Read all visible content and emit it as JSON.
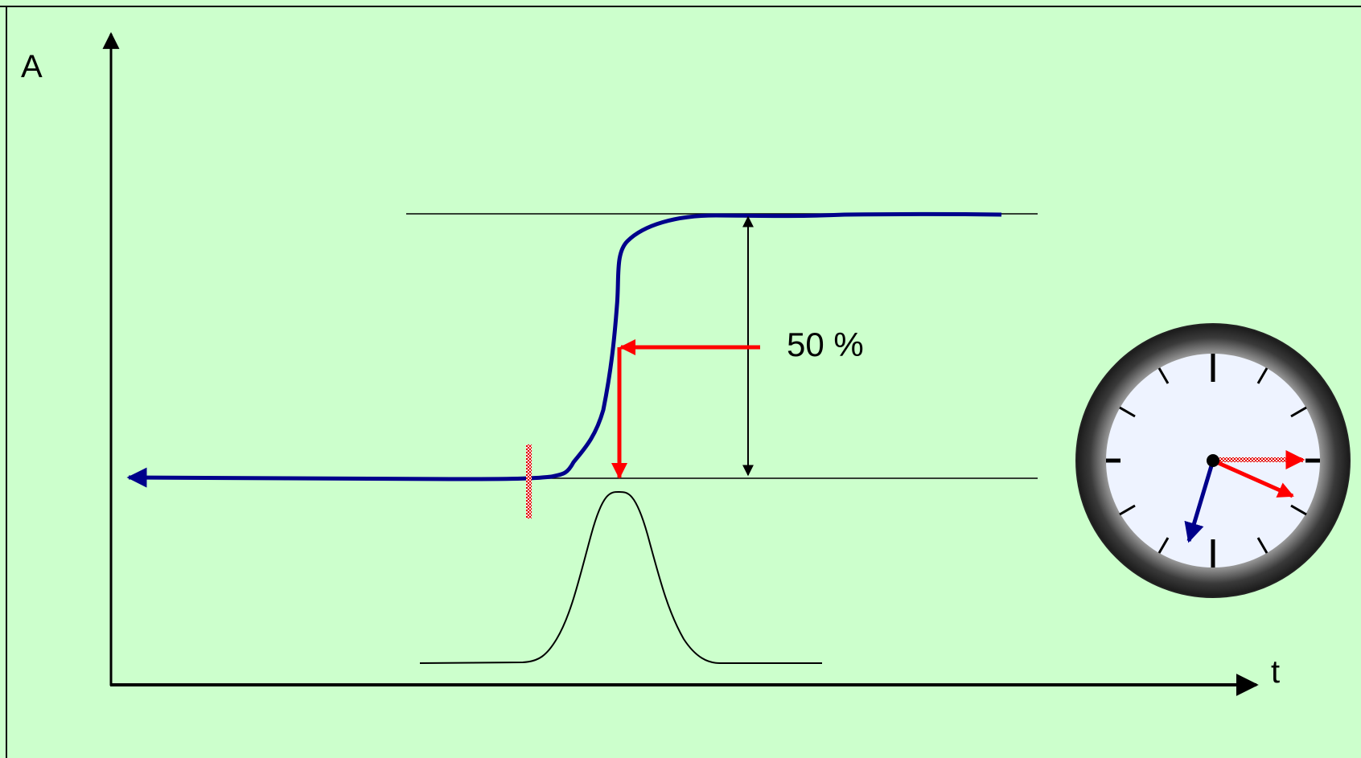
{
  "labels": {
    "y_axis": "A",
    "x_axis": "t",
    "percent": "50 %"
  },
  "colors": {
    "background": "#ccffcc",
    "curve": "#00008b",
    "marker": "#ff0000",
    "clock_rim": "#2b2b2b",
    "clock_face": "#eef3ff"
  },
  "icons": {
    "clock": "clock-icon"
  }
}
